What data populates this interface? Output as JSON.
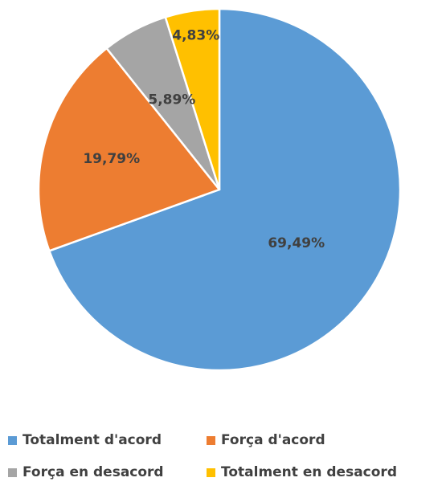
{
  "chart_data": {
    "type": "pie",
    "categories": [
      "Totalment  d'acord",
      "Força d'acord",
      "Força en desacord",
      "Totalment en desacord"
    ],
    "values": [
      69.49,
      19.79,
      5.89,
      4.83
    ],
    "labels": [
      "69,49%",
      "19,79%",
      "5,89%",
      "4,83%"
    ],
    "colors": [
      "#5b9bd5",
      "#ed7d31",
      "#a5a5a5",
      "#ffc000"
    ],
    "start_angle": "12 o'clock",
    "direction": "clockwise",
    "legend_position": "bottom"
  }
}
